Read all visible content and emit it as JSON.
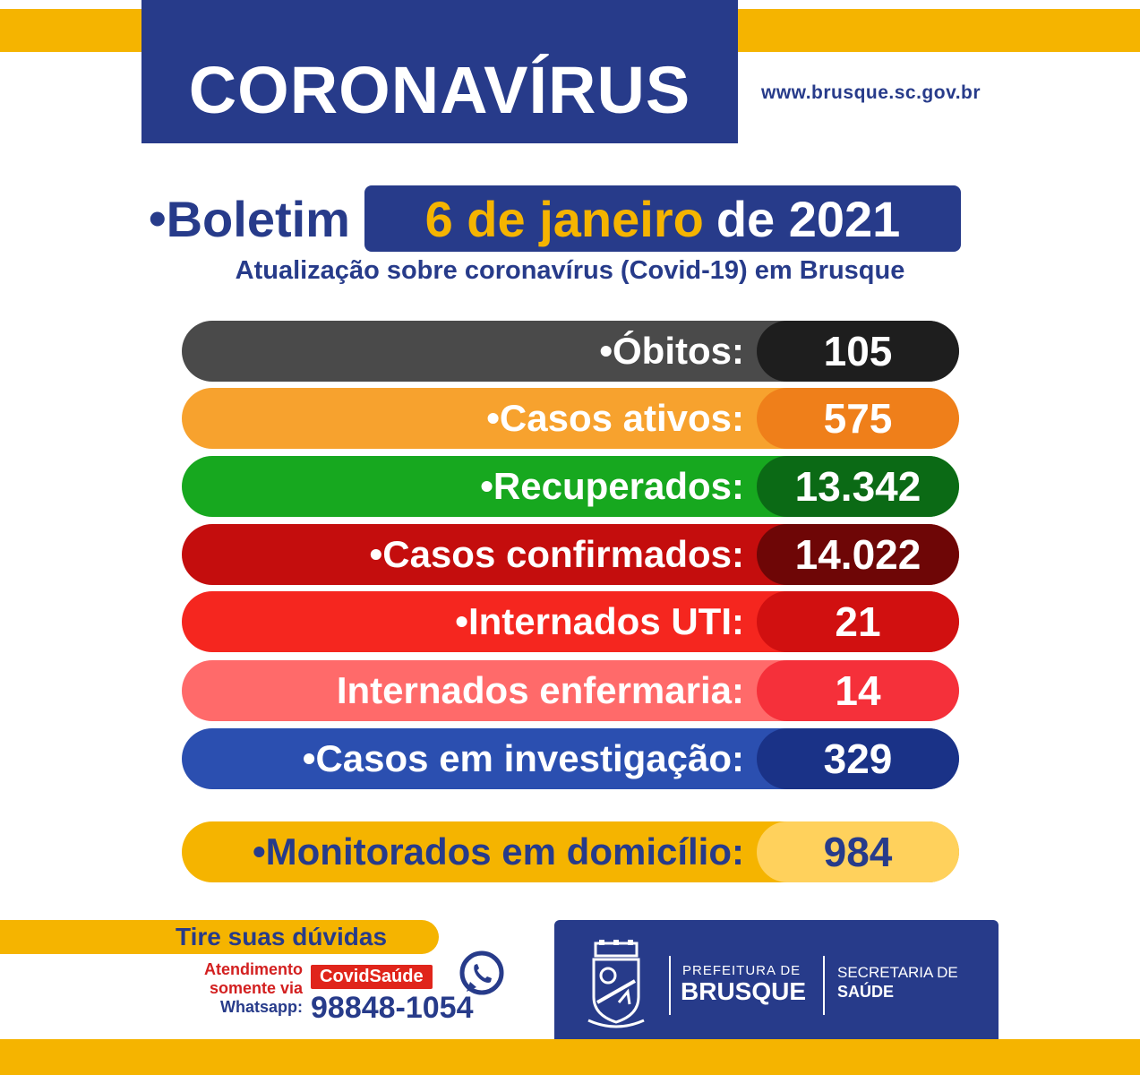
{
  "header": {
    "title": "CORONAVÍRUS",
    "url": "www.brusque.sc.gov.br"
  },
  "bulletin": {
    "bullet": "•",
    "label": "Boletim",
    "date_highlight": "6 de janeiro",
    "date_rest": "de 2021",
    "subtitle": "Atualização sobre coronavírus (Covid-19) em Brusque"
  },
  "stats": [
    {
      "label": "•Óbitos:",
      "value": "105",
      "color": "#4a4a4a"
    },
    {
      "label": "•Casos ativos:",
      "value": "575",
      "color": "#f7a22e"
    },
    {
      "label": "•Recuperados:",
      "value": "13.342",
      "color": "#17a81f"
    },
    {
      "label": "•Casos confirmados:",
      "value": "14.022",
      "color": "#c40d0d"
    },
    {
      "label": "•Internados UTI:",
      "value": "21",
      "color": "#f5261f"
    },
    {
      "label": "Internados enfermaria:",
      "value": "14",
      "color": "#ff6a6a"
    },
    {
      "label": "•Casos em investigação:",
      "value": "329",
      "color": "#2b4fb0"
    },
    {
      "label": "•Monitorados em domicílio:",
      "value": "984",
      "color": "#f5b400"
    }
  ],
  "contact": {
    "faq": "Tire suas dúvidas",
    "attendance_line1": "Atendimento",
    "attendance_line2": "somente via",
    "attendance_line3": "Whatsapp:",
    "badge": "CovidSaúde",
    "phone": "98848-1054",
    "icon": "whatsapp-icon"
  },
  "logo": {
    "pref_small": "PREFEITURA DE",
    "pref_big": "BRUSQUE",
    "sec_line1": "SECRETARIA DE",
    "sec_line2": "SAÚDE",
    "icon": "city-crest-icon"
  },
  "colors": {
    "brand_blue": "#273b8a",
    "brand_yellow": "#f5b400"
  }
}
